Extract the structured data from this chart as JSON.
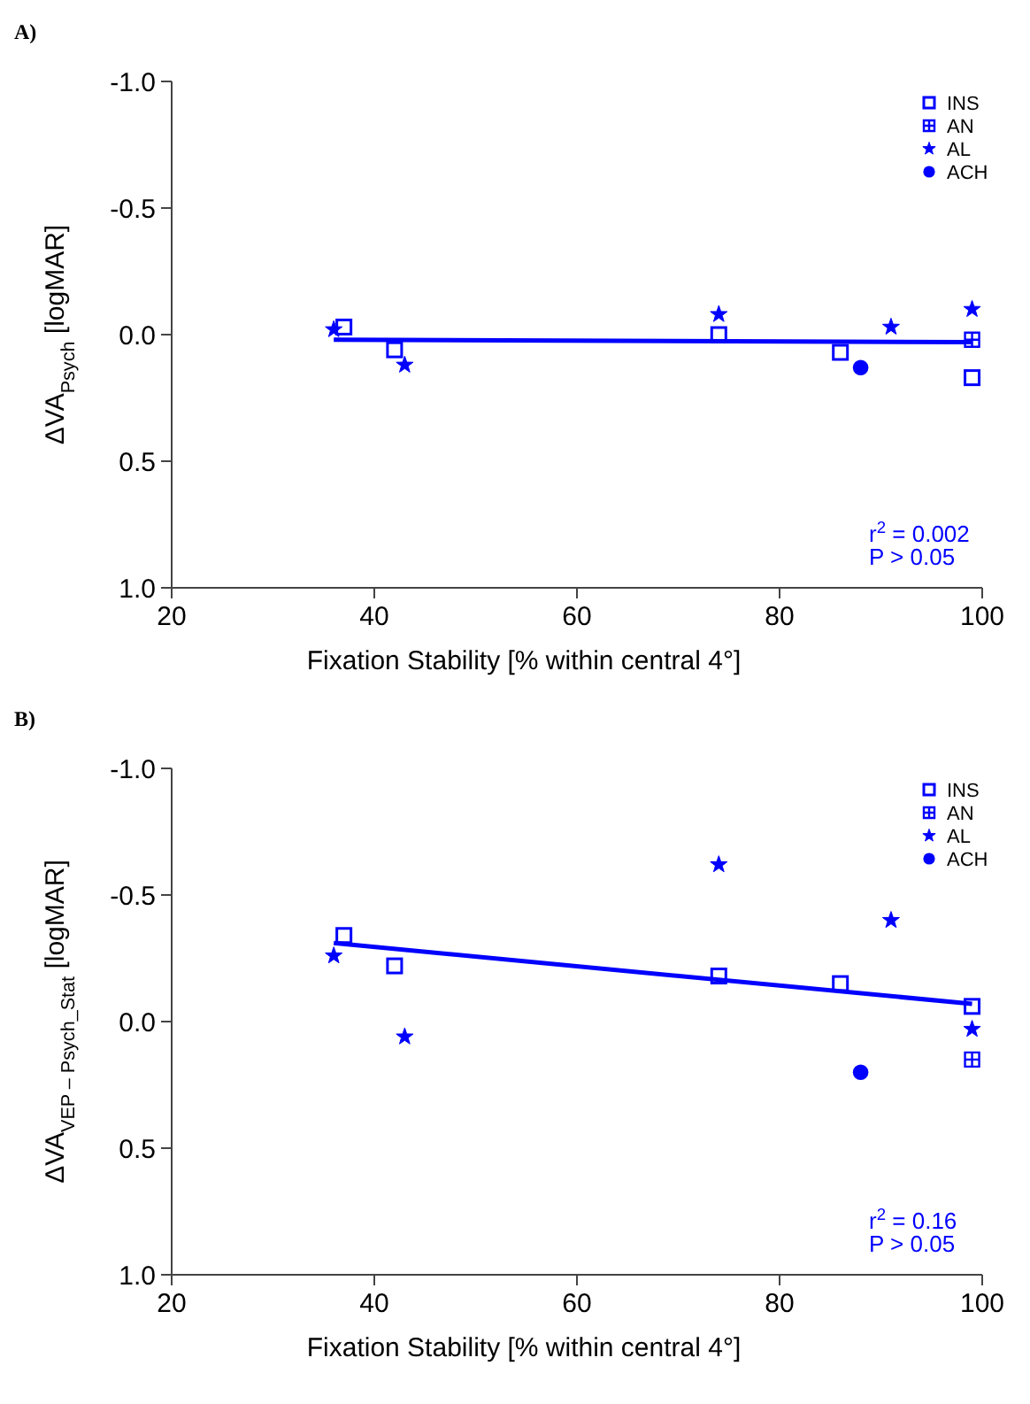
{
  "chart_data": [
    {
      "type": "scatter",
      "title": "A)",
      "xlabel": "Fixation Stability [% within central 4°]",
      "ylabel": "ΔVA$_{Psych}$ [logMAR]",
      "xlim": [
        20,
        100
      ],
      "xticks": [
        20,
        40,
        60,
        80,
        100
      ],
      "ylim": [
        1.0,
        -1.0
      ],
      "yticks": [
        {
          "value": -1,
          "label": "-1.0"
        },
        {
          "value": -0.5,
          "label": "-0.5"
        },
        {
          "value": 0,
          "label": "0.0"
        },
        {
          "value": 0.5,
          "label": "0.5"
        },
        {
          "value": 1,
          "label": "1.0"
        }
      ],
      "grid": false,
      "legend": "top right",
      "annotations": [
        "r$^{2}$ = 0.002",
        "P > 0.05"
      ],
      "series": [
        {
          "name": "INS",
          "color": "#0000ff",
          "marker": "square",
          "x": [
            37,
            42,
            74,
            86,
            99
          ],
          "values": [
            -0.03,
            0.06,
            0.0,
            0.07,
            0.17
          ]
        },
        {
          "name": "AN",
          "color": "#0000ff",
          "marker": "cross",
          "x": [
            99
          ],
          "values": [
            0.02
          ]
        },
        {
          "name": "AL",
          "color": "#0000ff",
          "marker": "star",
          "x": [
            36,
            43,
            74,
            91,
            99
          ],
          "values": [
            -0.02,
            0.12,
            -0.08,
            -0.03,
            -0.1
          ]
        },
        {
          "name": "ACH",
          "color": "#0000ff",
          "marker": "circle",
          "x": [
            88
          ],
          "values": [
            0.13
          ]
        },
        {
          "type": "line",
          "color": "#0000ff",
          "marker": "none",
          "x": [
            36,
            99
          ],
          "values": [
            0.02,
            0.03
          ]
        }
      ]
    },
    {
      "type": "scatter",
      "title": "B)",
      "xlabel": "Fixation Stability [% within central 4°]",
      "ylabel": "ΔVA$_{VEP – Psych_Stat}$ [logMAR]",
      "xlim": [
        20,
        100
      ],
      "xticks": [
        20,
        40,
        60,
        80,
        100
      ],
      "ylim": [
        1.0,
        -1.0
      ],
      "yticks": [
        {
          "value": -1,
          "label": "-1.0"
        },
        {
          "value": -0.5,
          "label": "-0.5"
        },
        {
          "value": 0,
          "label": "0.0"
        },
        {
          "value": 0.5,
          "label": "0.5"
        },
        {
          "value": 1,
          "label": "1.0"
        }
      ],
      "grid": false,
      "legend": "top right",
      "annotations": [
        "r$^{2}$ = 0.16",
        "P > 0.05"
      ],
      "series": [
        {
          "name": "INS",
          "color": "#0000ff",
          "marker": "square",
          "x": [
            37,
            42,
            74,
            86,
            99
          ],
          "values": [
            -0.34,
            -0.22,
            -0.18,
            -0.15,
            -0.06
          ]
        },
        {
          "name": "AN",
          "color": "#0000ff",
          "marker": "cross",
          "x": [
            99
          ],
          "values": [
            0.15
          ]
        },
        {
          "name": "AL",
          "color": "#0000ff",
          "marker": "star",
          "x": [
            36,
            43,
            74,
            91,
            99
          ],
          "values": [
            -0.26,
            0.06,
            -0.62,
            -0.4,
            0.03
          ]
        },
        {
          "name": "ACH",
          "color": "#0000ff",
          "marker": "circle",
          "x": [
            88
          ],
          "values": [
            0.2
          ]
        },
        {
          "type": "line",
          "color": "#0000ff",
          "marker": "none",
          "x": [
            36,
            99
          ],
          "values": [
            -0.31,
            -0.07
          ]
        }
      ]
    }
  ]
}
